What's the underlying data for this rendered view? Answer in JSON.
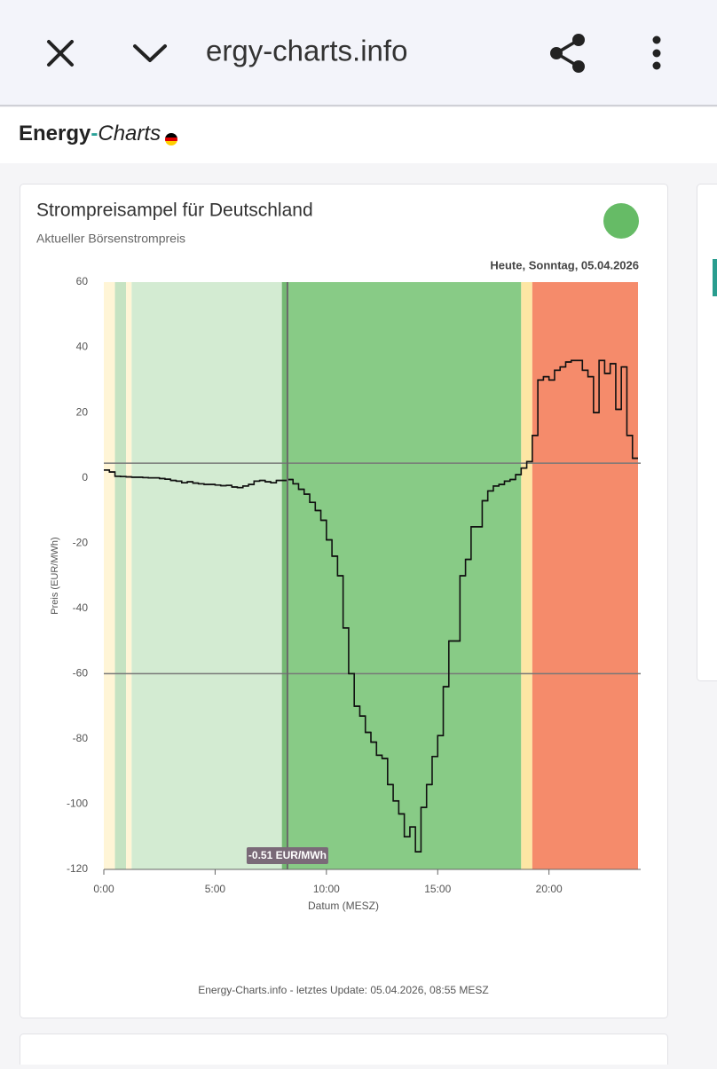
{
  "browser": {
    "url": "ergy-charts.info"
  },
  "header": {
    "logo": {
      "main": "Energy",
      "dash": "-",
      "italic": "Charts"
    }
  },
  "card": {
    "title": "Strompreisampel für Deutschland",
    "subtitle": "Aktueller Börsenstrompreis",
    "date": "Heute, Sonntag, 05.04.2026",
    "footer": "Energy-Charts.info - letztes Update: 05.04.2026, 08:55 MESZ",
    "status_color": "#66bb66"
  },
  "chart_data": {
    "type": "step",
    "xlabel": "Datum (MESZ)",
    "ylabel": "Preis (EUR/MWh)",
    "xlim": [
      0,
      24
    ],
    "ylim": [
      -120,
      60
    ],
    "xticks": [
      {
        "value": 0,
        "label": "0:00"
      },
      {
        "value": 5,
        "label": "5:00"
      },
      {
        "value": 10,
        "label": "10:00"
      },
      {
        "value": 15,
        "label": "15:00"
      },
      {
        "value": 20,
        "label": "20:00"
      }
    ],
    "yticks": [
      -120,
      -100,
      -80,
      -60,
      -40,
      -20,
      0,
      20,
      40,
      60
    ],
    "x": [
      0,
      0.25,
      0.5,
      0.75,
      1,
      1.25,
      1.5,
      1.75,
      2,
      2.25,
      2.5,
      2.75,
      3,
      3.25,
      3.5,
      3.75,
      4,
      4.25,
      4.5,
      4.75,
      5,
      5.25,
      5.5,
      5.75,
      6,
      6.25,
      6.5,
      6.75,
      7,
      7.25,
      7.5,
      7.75,
      8,
      8.25,
      8.5,
      8.75,
      9,
      9.25,
      9.5,
      9.75,
      10,
      10.25,
      10.5,
      10.75,
      11,
      11.25,
      11.5,
      11.75,
      12,
      12.25,
      12.5,
      12.75,
      13,
      13.25,
      13.5,
      13.75,
      14,
      14.25,
      14.5,
      14.75,
      15,
      15.25,
      15.5,
      15.75,
      16,
      16.25,
      16.5,
      16.75,
      17,
      17.25,
      17.5,
      17.75,
      18,
      18.25,
      18.5,
      18.75,
      19,
      19.25,
      19.5,
      19.75,
      20,
      20.25,
      20.5,
      20.75,
      21,
      21.25,
      21.5,
      21.75,
      22,
      22.25,
      22.5,
      22.75,
      23,
      23.25,
      23.5,
      23.75
    ],
    "series": [
      {
        "color": "#111111",
        "values": [
          2.4,
          1.8,
          0.5,
          0.4,
          0.3,
          0.2,
          0.2,
          0.1,
          0,
          0,
          -0.2,
          -0.4,
          -0.8,
          -1,
          -1.5,
          -1.2,
          -1.6,
          -1.8,
          -2,
          -2,
          -2.2,
          -2.4,
          -2.3,
          -2.8,
          -3,
          -2.5,
          -2,
          -1,
          -0.8,
          -1.2,
          -1.5,
          -0.8,
          -0.8,
          -0.51,
          -1.8,
          -3.5,
          -5,
          -7.5,
          -10,
          -13,
          -19,
          -24,
          -30,
          -46,
          -60,
          -70,
          -73,
          -78,
          -81,
          -85,
          -86,
          -94,
          -99,
          -103,
          -110,
          -107,
          -114.6,
          -101,
          -94,
          -85.4,
          -79,
          -64,
          -50,
          -50,
          -30,
          -25,
          -15,
          -15,
          -7,
          -4,
          -2.5,
          -2,
          -1,
          -0.5,
          1,
          3,
          5,
          13,
          30,
          31,
          30,
          33,
          34,
          35.5,
          36,
          36,
          33,
          31,
          20,
          36,
          32,
          35,
          21,
          34,
          13,
          6
        ]
      }
    ],
    "bands": [
      {
        "start": 0,
        "end": 0.5,
        "color": "#fff5d6"
      },
      {
        "start": 0.5,
        "end": 1,
        "color": "#c6e3c2"
      },
      {
        "start": 1,
        "end": 1.25,
        "color": "#fff5d6"
      },
      {
        "start": 1.25,
        "end": 8,
        "color": "#d3ebd2"
      },
      {
        "start": 8,
        "end": 8.25,
        "color": "#74b973"
      },
      {
        "start": 8.25,
        "end": 18.75,
        "color": "#88cb86"
      },
      {
        "start": 18.75,
        "end": 19.25,
        "color": "#fde6a4"
      },
      {
        "start": 19.25,
        "end": 24,
        "color": "#f58b6b"
      }
    ],
    "reference_lines": [
      4.5,
      -60
    ],
    "tooltip": {
      "x": 8.25,
      "value": -0.51,
      "label": "-0.51 EUR/MWh"
    }
  }
}
